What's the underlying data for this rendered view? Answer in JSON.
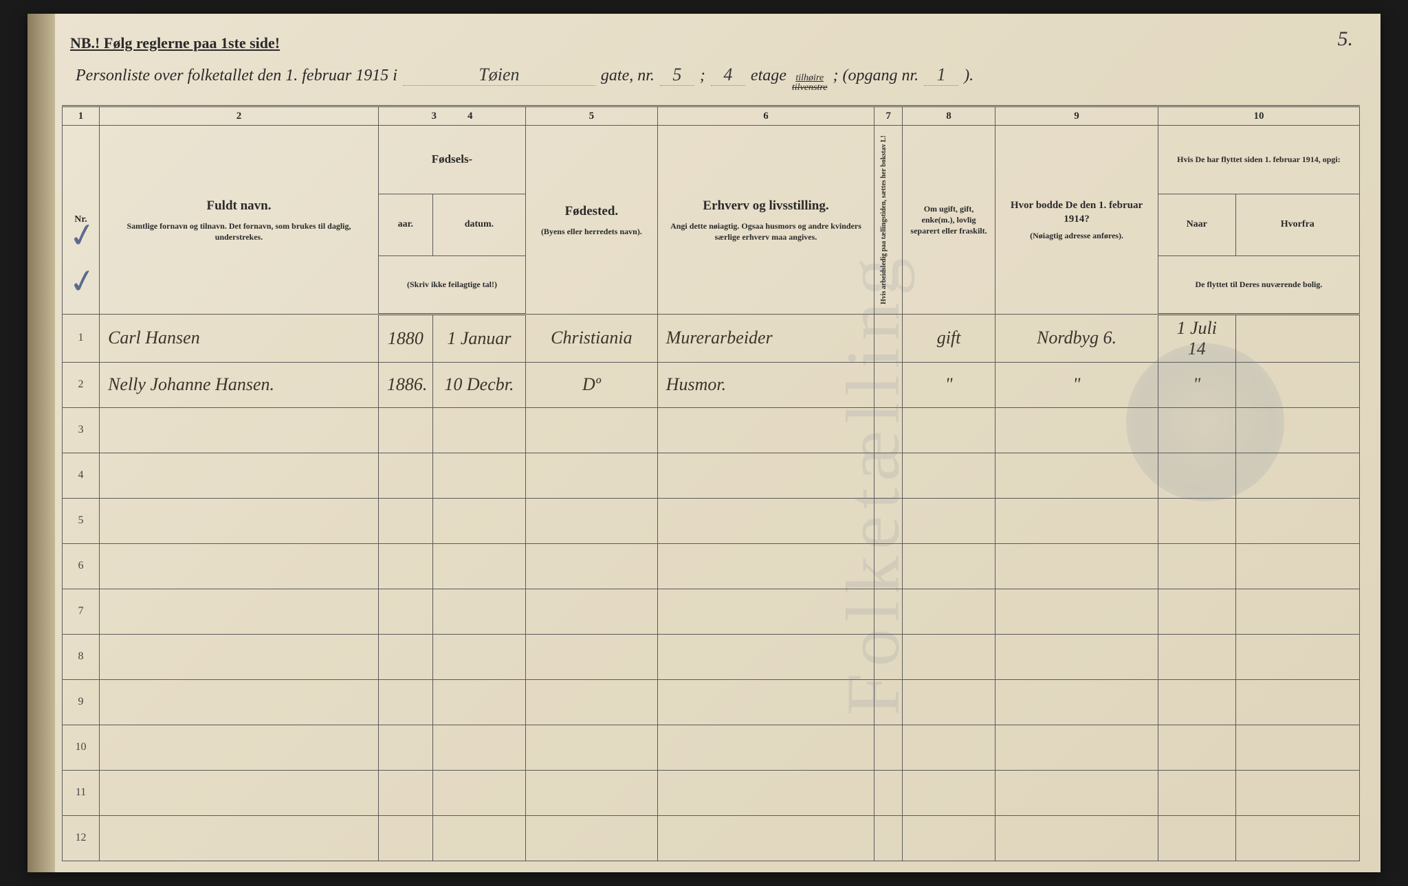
{
  "page_number": "5.",
  "nb_text": "NB.! Følg reglerne paa 1ste side!",
  "title": {
    "prefix": "Personliste over folketallet den 1. februar 1915 i",
    "street": "Tøien",
    "gate_label": "gate, nr.",
    "gate_nr": "5",
    "semicolon": ";",
    "etage_val": "4",
    "etage_label": "etage",
    "side_top": "tilhøire",
    "side_bottom_strike": "tilvenstre",
    "opgang_label": "; (opgang nr.",
    "opgang_nr": "1",
    "close": ")."
  },
  "col_nums": [
    "1",
    "2",
    "3",
    "4",
    "5",
    "6",
    "7",
    "8",
    "9",
    "10"
  ],
  "headers": {
    "nr": "Nr.",
    "name_big": "Fuldt navn.",
    "name_small": "Samtlige fornavn og tilnavn. Det fornavn, som brukes til daglig, understrekes.",
    "birth_group": "Fødsels-",
    "birth_year": "aar.",
    "birth_date": "datum.",
    "birth_note": "(Skriv ikke feilagtige tal!)",
    "birthplace": "Fødested.",
    "birthplace_note": "(Byens eller herredets navn).",
    "occupation_big": "Erhverv og livsstilling.",
    "occupation_small": "Angi dette nøiagtig. Ogsaa husmors og andre kvinders særlige erhverv maa angives.",
    "col7_vert": "Hvis arbeidsledig paa tællingstiden, sættes her bokstav L!",
    "status": "Om ugift, gift, enke(m.), lovlig separert eller fraskilt.",
    "prev_addr_big": "Hvor bodde De den 1. februar 1914?",
    "prev_addr_small": "(Nøiagtig adresse anføres).",
    "moved": "Hvis De har flyttet siden 1. februar 1914, opgi:",
    "moved_when": "Naar",
    "moved_from": "Hvorfra",
    "moved_note": "De flyttet til Deres nuværende bolig."
  },
  "rows": [
    {
      "nr": "1",
      "name": "Carl Hansen",
      "year": "1880",
      "date": "1 Januar",
      "place": "Christiania",
      "occ": "Murerarbeider",
      "l": "",
      "status": "gift",
      "prev": "Nordbyg 6.",
      "when": "1 Juli 14",
      "from": ""
    },
    {
      "nr": "2",
      "name": "Nelly Johanne Hansen.",
      "year": "1886.",
      "date": "10 Decbr.",
      "place": "Dº",
      "occ": "Husmor.",
      "l": "",
      "status": "\"",
      "prev": "\"",
      "when": "\"",
      "from": ""
    },
    {
      "nr": "3",
      "name": "",
      "year": "",
      "date": "",
      "place": "",
      "occ": "",
      "l": "",
      "status": "",
      "prev": "",
      "when": "",
      "from": ""
    },
    {
      "nr": "4",
      "name": "",
      "year": "",
      "date": "",
      "place": "",
      "occ": "",
      "l": "",
      "status": "",
      "prev": "",
      "when": "",
      "from": ""
    },
    {
      "nr": "5",
      "name": "",
      "year": "",
      "date": "",
      "place": "",
      "occ": "",
      "l": "",
      "status": "",
      "prev": "",
      "when": "",
      "from": ""
    },
    {
      "nr": "6",
      "name": "",
      "year": "",
      "date": "",
      "place": "",
      "occ": "",
      "l": "",
      "status": "",
      "prev": "",
      "when": "",
      "from": ""
    },
    {
      "nr": "7",
      "name": "",
      "year": "",
      "date": "",
      "place": "",
      "occ": "",
      "l": "",
      "status": "",
      "prev": "",
      "when": "",
      "from": ""
    },
    {
      "nr": "8",
      "name": "",
      "year": "",
      "date": "",
      "place": "",
      "occ": "",
      "l": "",
      "status": "",
      "prev": "",
      "when": "",
      "from": ""
    },
    {
      "nr": "9",
      "name": "",
      "year": "",
      "date": "",
      "place": "",
      "occ": "",
      "l": "",
      "status": "",
      "prev": "",
      "when": "",
      "from": ""
    },
    {
      "nr": "10",
      "name": "",
      "year": "",
      "date": "",
      "place": "",
      "occ": "",
      "l": "",
      "status": "",
      "prev": "",
      "when": "",
      "from": ""
    },
    {
      "nr": "11",
      "name": "",
      "year": "",
      "date": "",
      "place": "",
      "occ": "",
      "l": "",
      "status": "",
      "prev": "",
      "when": "",
      "from": ""
    },
    {
      "nr": "12",
      "name": "",
      "year": "",
      "date": "",
      "place": "",
      "occ": "",
      "l": "",
      "status": "",
      "prev": "",
      "when": "",
      "from": ""
    }
  ],
  "col_widths": [
    "48px",
    "360px",
    "70px",
    "120px",
    "170px",
    "280px",
    "36px",
    "120px",
    "210px",
    "100px",
    "160px"
  ],
  "colors": {
    "paper": "#e5dcc5",
    "ink": "#2a2a2a",
    "handwriting": "#3a342a",
    "pencil_blue": "#5b6b8f",
    "border": "#5a5a5a"
  }
}
